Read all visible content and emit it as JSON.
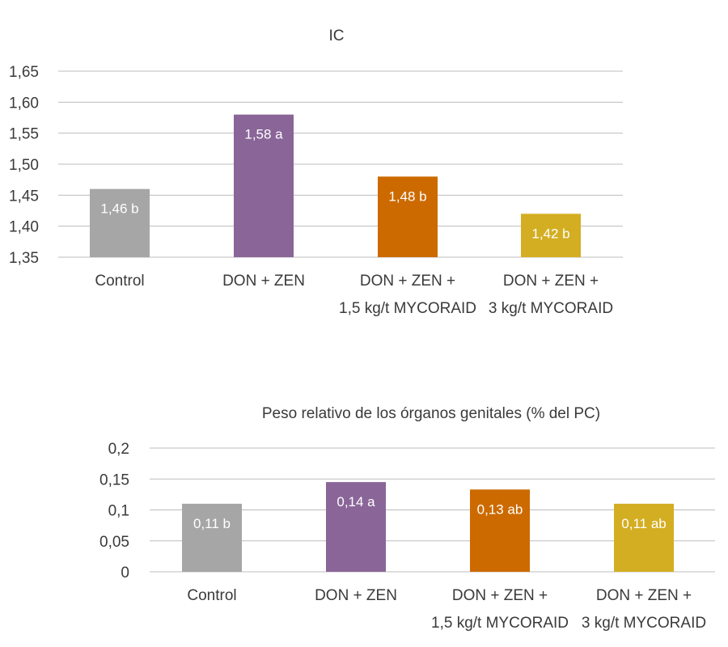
{
  "chart_data": [
    {
      "type": "bar",
      "title": "IC",
      "categories": [
        [
          "Control"
        ],
        [
          "DON + ZEN"
        ],
        [
          "DON + ZEN +",
          "1,5 kg/t MYCORAID"
        ],
        [
          "DON + ZEN +",
          "3 kg/t MYCORAID"
        ]
      ],
      "values": [
        1.46,
        1.58,
        1.48,
        1.42
      ],
      "data_labels": [
        "1,46 b",
        "1,58 a",
        "1,48 b",
        "1,42 b"
      ],
      "colors": [
        "#a6a6a6",
        "#8a6598",
        "#cc6a00",
        "#d4ae22"
      ],
      "ylim": [
        1.35,
        1.65
      ],
      "yticks": [
        1.35,
        1.4,
        1.45,
        1.5,
        1.55,
        1.6,
        1.65
      ],
      "ytick_labels": [
        "1,35",
        "1,40",
        "1,45",
        "1,50",
        "1,55",
        "1,60",
        "1,65"
      ],
      "grid": true
    },
    {
      "type": "bar",
      "title": "Peso relativo de los órganos genitales (% del PC)",
      "categories": [
        [
          "Control"
        ],
        [
          "DON + ZEN"
        ],
        [
          "DON + ZEN +",
          "1,5 kg/t MYCORAID"
        ],
        [
          "DON + ZEN +",
          "3 kg/t MYCORAID"
        ]
      ],
      "values": [
        0.11,
        0.145,
        0.133,
        0.11
      ],
      "data_labels": [
        "0,11 b",
        "0,14 a",
        "0,13 ab",
        "0,11 ab"
      ],
      "colors": [
        "#a6a6a6",
        "#8a6598",
        "#cc6a00",
        "#d4ae22"
      ],
      "ylim": [
        0,
        0.2
      ],
      "yticks": [
        0,
        0.05,
        0.1,
        0.15,
        0.2
      ],
      "ytick_labels": [
        "0",
        "0,05",
        "0,1",
        "0,15",
        "0,2"
      ],
      "grid": true
    }
  ]
}
